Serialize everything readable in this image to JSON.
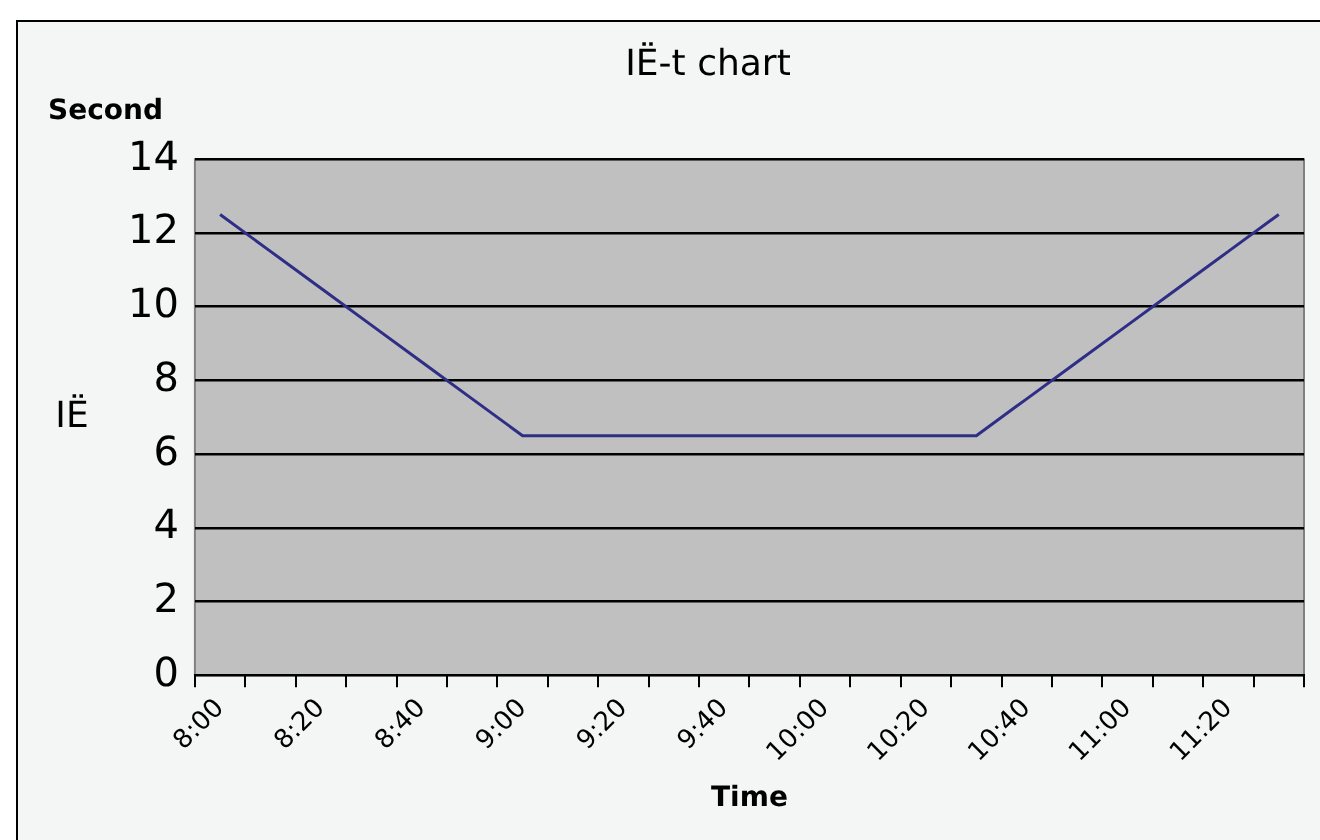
{
  "chart_data": {
    "type": "line",
    "title": "IË-t chart",
    "xlabel": "Time",
    "ylabel": "IË",
    "annotations": [
      "Second"
    ],
    "categories": [
      "8:00",
      null,
      "8:20",
      null,
      "8:40",
      null,
      "9:00",
      null,
      "9:20",
      null,
      "9:40",
      null,
      "10:00",
      null,
      "10:20",
      null,
      "10:40",
      null,
      "11:00",
      null,
      "11:20",
      null
    ],
    "series": [
      {
        "color": "#2e2e86",
        "values": [
          12.5,
          11.5,
          10.5,
          9.5,
          8.5,
          7.5,
          6.5,
          6.5,
          6.5,
          6.5,
          6.5,
          6.5,
          6.5,
          6.5,
          6.5,
          6.5,
          7.5,
          8.5,
          9.5,
          10.5,
          11.5,
          12.5
        ]
      }
    ],
    "ylim": [
      0,
      14
    ],
    "yticks": [
      0,
      2,
      4,
      6,
      8,
      10,
      12,
      14
    ],
    "grid": "y",
    "legend": false,
    "marker": "none",
    "line_style": "solid"
  }
}
